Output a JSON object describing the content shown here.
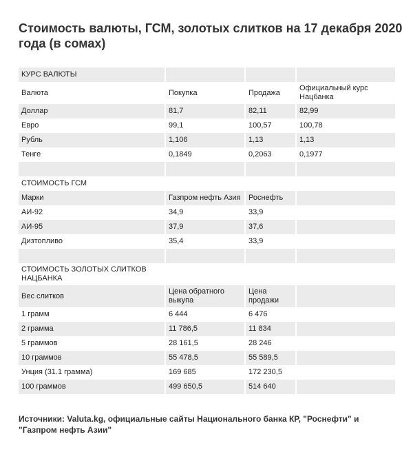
{
  "title": "Стоимость валюты, ГСМ, золотых слитков на 17 декабря 2020 года (в сомах)",
  "sections": [
    {
      "title": "КУРС ВАЛЮТЫ",
      "header": [
        "Валюта",
        "Покупка",
        "Продажа",
        "Официальный курс Нацбанка"
      ],
      "rows": [
        [
          "Доллар",
          "81,7",
          "82,11",
          "82,99"
        ],
        [
          "Евро",
          "99,1",
          "100,57",
          "100,78"
        ],
        [
          "Рубль",
          "1,106",
          "1,13",
          "1,13"
        ],
        [
          "Тенге",
          "0,1849",
          "0,2063",
          "0,1977"
        ]
      ]
    },
    {
      "title": "СТОИМОСТЬ ГСМ",
      "header": [
        "Марки",
        "Газпром нефть Азия",
        "Роснефть"
      ],
      "rows": [
        [
          "АИ-92",
          "34,9",
          "33,9"
        ],
        [
          "АИ-95",
          "37,9",
          "37,6"
        ],
        [
          "Дизтопливо",
          "35,4",
          "33,9"
        ]
      ]
    },
    {
      "title": "СТОИМОСТЬ ЗОЛОТЫХ СЛИТКОВ НАЦБАНКА",
      "header": [
        "Вес слитков",
        "Цена обратного выкупа",
        "Цена продажи"
      ],
      "rows": [
        [
          "1 грамм",
          "6 444",
          "6 476"
        ],
        [
          "2 грамма",
          "11 786,5",
          "11 834"
        ],
        [
          "5 граммов",
          "28 161,5",
          "28 246"
        ],
        [
          "10 граммов",
          "55 478,5",
          "55 589,5"
        ],
        [
          "Унция (31.1 грамма)",
          "169 685",
          "172 230,5"
        ],
        [
          "100 граммов",
          "499 650,5",
          "514 640"
        ]
      ]
    }
  ],
  "source": "Источники: Valuta.kg, официальные сайты Национального банка КР, \"Роснефти\" и \"Газпром нефть Азии\""
}
